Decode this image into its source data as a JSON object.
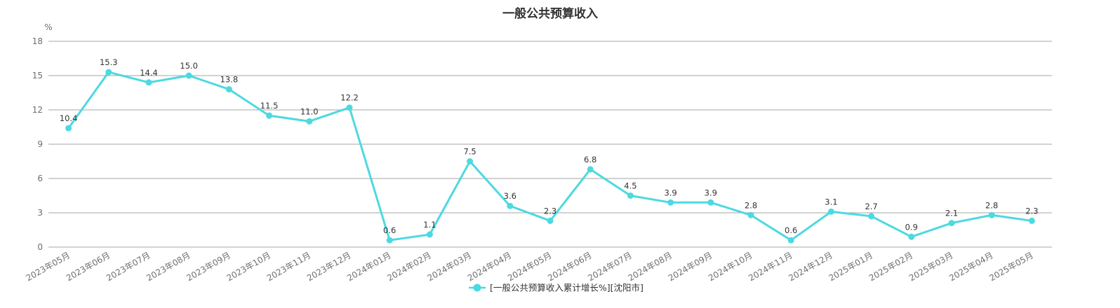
{
  "chart_data": {
    "type": "line",
    "title": "一般公共预算收入",
    "ylabel": "%",
    "xlabel": "",
    "ylim": [
      0,
      18
    ],
    "yticks": [
      0,
      3,
      6,
      9,
      12,
      15,
      18
    ],
    "grid": true,
    "legend_position": "bottom-center",
    "categories": [
      "2023年05月",
      "2023年06月",
      "2023年07月",
      "2023年08月",
      "2023年09月",
      "2023年10月",
      "2023年11月",
      "2023年12月",
      "2024年01月",
      "2024年02月",
      "2024年03月",
      "2024年04月",
      "2024年05月",
      "2024年06月",
      "2024年07月",
      "2024年08月",
      "2024年09月",
      "2024年10月",
      "2024年11月",
      "2024年12月",
      "2025年01月",
      "2025年02月",
      "2025年03月",
      "2025年04月",
      "2025年05月"
    ],
    "series": [
      {
        "name": "[一般公共预算收入累计增长%][沈阳市]",
        "color": "#4dd9e0",
        "values": [
          10.4,
          15.3,
          14.4,
          15.0,
          13.8,
          11.5,
          11.0,
          12.2,
          0.6,
          1.1,
          7.5,
          3.6,
          2.3,
          6.8,
          4.5,
          3.9,
          3.9,
          2.8,
          0.6,
          3.1,
          2.7,
          0.9,
          2.1,
          2.8,
          2.3
        ],
        "labels": [
          "10.4",
          "15.3",
          "14.4",
          "15.0",
          "13.8",
          "11.5",
          "11.0",
          "12.2",
          "0.6",
          "1.1",
          "7.5",
          "3.6",
          "2.3",
          "6.8",
          "4.5",
          "3.9",
          "3.9",
          "2.8",
          "0.6",
          "3.1",
          "2.7",
          "0.9",
          "2.1",
          "2.8",
          "2.3"
        ]
      }
    ]
  },
  "colors": {
    "series": "#4dd9e0",
    "grid": "#a6a6a6",
    "text": "#333333",
    "axis_text": "#6e6e6e"
  }
}
